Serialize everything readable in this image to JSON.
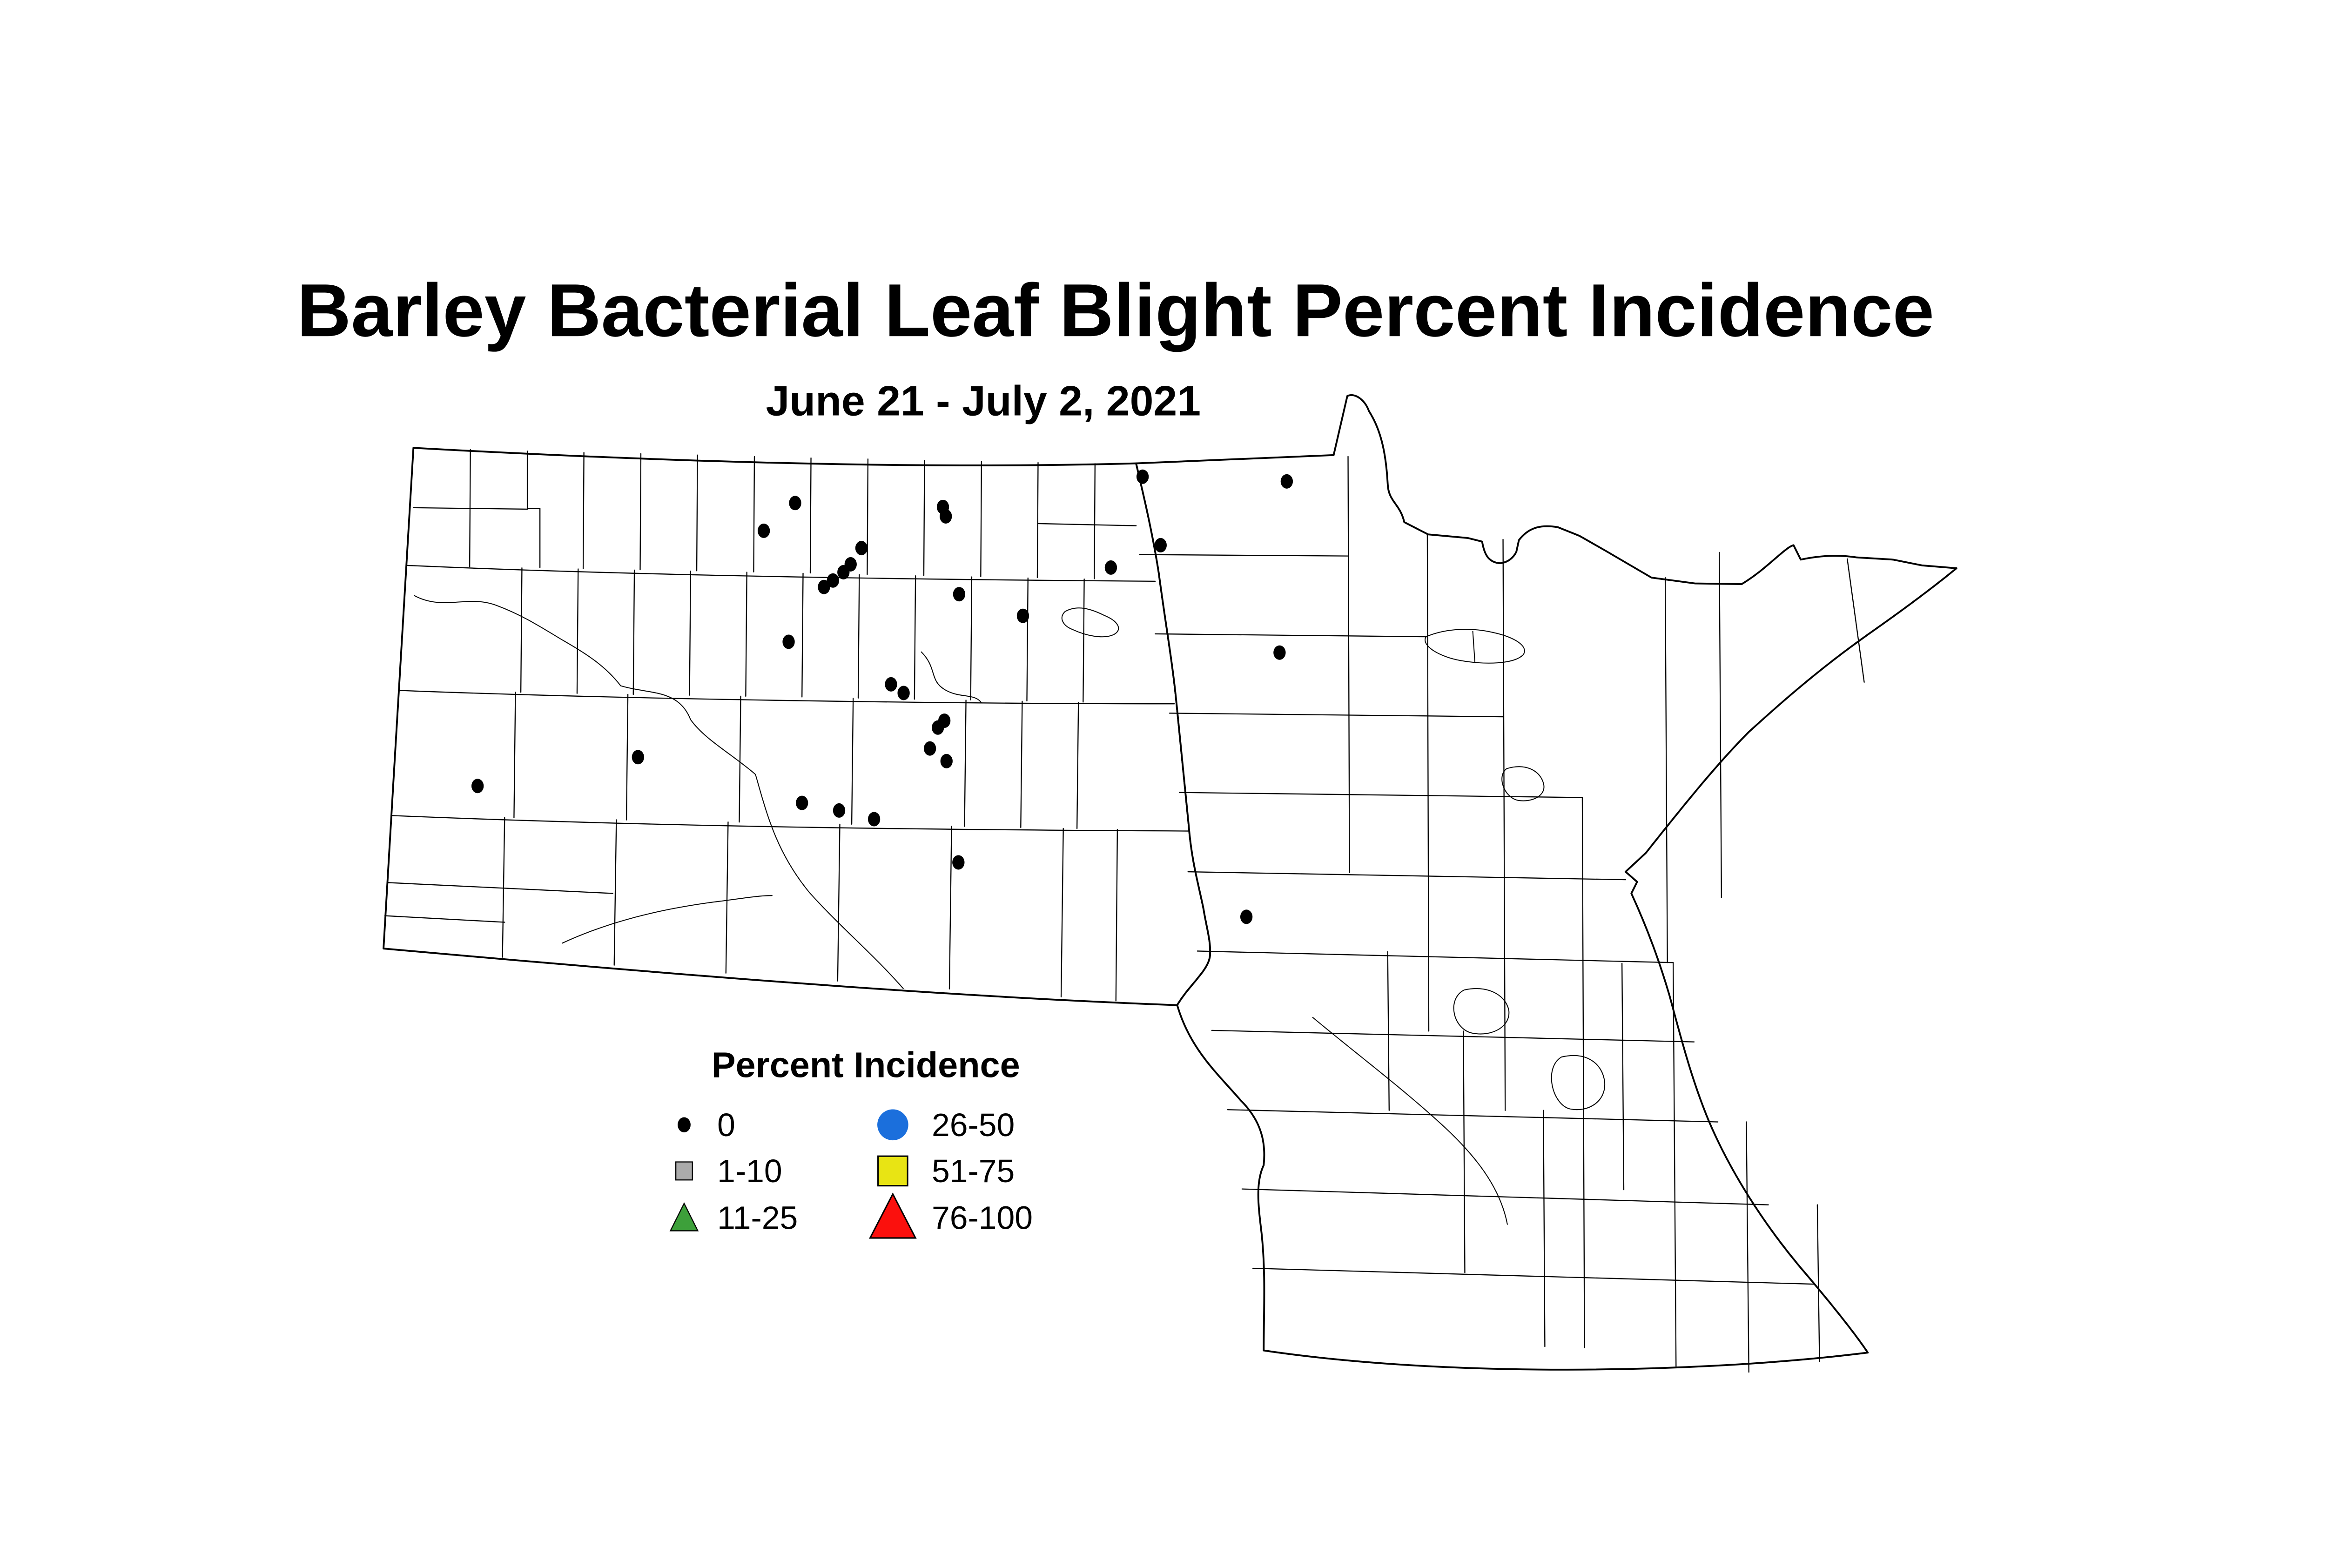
{
  "page": {
    "title": "Barley Bacterial Leaf Blight Percent Incidence",
    "subtitle": "June 21 - July 2, 2021"
  },
  "legend": {
    "title": "Percent Incidence",
    "items": [
      {
        "label": "0",
        "shape": "small-black-dot",
        "color": "#000000"
      },
      {
        "label": "1-10",
        "shape": "gray-square",
        "color": "#ABABAB"
      },
      {
        "label": "11-25",
        "shape": "green-triangle",
        "color": "#3DA03A"
      },
      {
        "label": "26-50",
        "shape": "blue-circle",
        "color": "#1B6FDC"
      },
      {
        "label": "51-75",
        "shape": "yellow-square",
        "color": "#E8E414"
      },
      {
        "label": "76-100",
        "shape": "red-triangle",
        "color": "#FB100D"
      }
    ]
  },
  "map": {
    "point_symbol": "black-dot",
    "point_value_category": "0",
    "point_color": "#000000",
    "point_count": 30,
    "points": [
      [
        3170,
        832
      ],
      [
        3570,
        845
      ],
      [
        2206,
        905
      ],
      [
        2119,
        982
      ],
      [
        2616,
        916
      ],
      [
        2624,
        942
      ],
      [
        2390,
        1030
      ],
      [
        2360,
        1075
      ],
      [
        2340,
        1097
      ],
      [
        2311,
        1120
      ],
      [
        2286,
        1138
      ],
      [
        2661,
        1158
      ],
      [
        3220,
        1022
      ],
      [
        3082,
        1084
      ],
      [
        2838,
        1218
      ],
      [
        2188,
        1290
      ],
      [
        3550,
        1320
      ],
      [
        2472,
        1408
      ],
      [
        2507,
        1432
      ],
      [
        2620,
        1509
      ],
      [
        2602,
        1528
      ],
      [
        2580,
        1586
      ],
      [
        2626,
        1621
      ],
      [
        1770,
        1610
      ],
      [
        1325,
        1690
      ],
      [
        2225,
        1737
      ],
      [
        2328,
        1758
      ],
      [
        2425,
        1782
      ],
      [
        2659,
        1902
      ],
      [
        3458,
        2053
      ]
    ]
  }
}
